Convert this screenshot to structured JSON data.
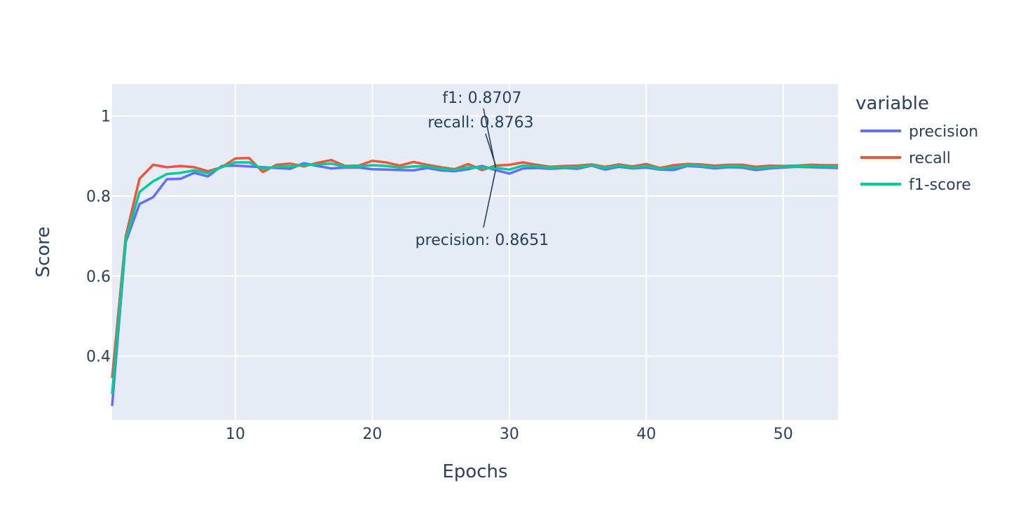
{
  "colors": {
    "plot_bg": "#e5ecf6",
    "grid": "#ffffff",
    "text": "#2a3f5f",
    "precision": "#636efa",
    "recall": "#ef553b",
    "f1-score": "#00cc96"
  },
  "chart_data": {
    "type": "line",
    "title": "",
    "xlabel": "Epochs",
    "ylabel": "Score",
    "xlim": [
      1,
      54
    ],
    "ylim": [
      0.24,
      1.08
    ],
    "xticks": [
      10,
      20,
      30,
      40,
      50
    ],
    "yticks": [
      0.4,
      0.6,
      0.8,
      1
    ],
    "ytick_labels": [
      "0.4",
      "0.6",
      "0.8",
      "1"
    ],
    "grid": true,
    "legend": {
      "title": "variable",
      "position": "right"
    },
    "x": [
      1,
      2,
      3,
      4,
      5,
      6,
      7,
      8,
      9,
      10,
      11,
      12,
      13,
      14,
      15,
      16,
      17,
      18,
      19,
      20,
      21,
      22,
      23,
      24,
      25,
      26,
      27,
      28,
      29,
      30,
      31,
      32,
      33,
      34,
      35,
      36,
      37,
      38,
      39,
      40,
      41,
      42,
      43,
      44,
      45,
      46,
      47,
      48,
      49,
      50,
      51,
      52,
      53,
      54
    ],
    "series": [
      {
        "name": "precision",
        "color": "#636efa",
        "values": [
          0.275,
          0.685,
          0.78,
          0.797,
          0.842,
          0.843,
          0.858,
          0.849,
          0.875,
          0.876,
          0.874,
          0.872,
          0.87,
          0.868,
          0.882,
          0.875,
          0.869,
          0.871,
          0.871,
          0.867,
          0.866,
          0.865,
          0.864,
          0.87,
          0.864,
          0.862,
          0.867,
          0.875,
          0.865,
          0.856,
          0.869,
          0.87,
          0.868,
          0.87,
          0.868,
          0.876,
          0.866,
          0.873,
          0.869,
          0.871,
          0.866,
          0.865,
          0.875,
          0.873,
          0.869,
          0.872,
          0.871,
          0.865,
          0.869,
          0.871,
          0.873,
          0.872,
          0.871,
          0.87
        ]
      },
      {
        "name": "recall",
        "color": "#ef553b",
        "values": [
          0.345,
          0.7,
          0.843,
          0.878,
          0.872,
          0.875,
          0.872,
          0.862,
          0.872,
          0.894,
          0.895,
          0.86,
          0.878,
          0.881,
          0.874,
          0.883,
          0.89,
          0.875,
          0.876,
          0.888,
          0.884,
          0.876,
          0.885,
          0.878,
          0.872,
          0.867,
          0.88,
          0.865,
          0.876,
          0.878,
          0.884,
          0.878,
          0.873,
          0.875,
          0.876,
          0.879,
          0.873,
          0.879,
          0.874,
          0.88,
          0.87,
          0.877,
          0.88,
          0.879,
          0.876,
          0.878,
          0.878,
          0.873,
          0.876,
          0.875,
          0.876,
          0.878,
          0.877,
          0.877
        ]
      },
      {
        "name": "f1-score",
        "color": "#00cc96",
        "values": [
          0.305,
          0.69,
          0.81,
          0.837,
          0.855,
          0.858,
          0.864,
          0.857,
          0.872,
          0.884,
          0.884,
          0.868,
          0.873,
          0.874,
          0.877,
          0.879,
          0.881,
          0.873,
          0.874,
          0.877,
          0.875,
          0.871,
          0.874,
          0.874,
          0.868,
          0.865,
          0.872,
          0.87,
          0.8707,
          0.866,
          0.876,
          0.874,
          0.871,
          0.872,
          0.872,
          0.877,
          0.87,
          0.876,
          0.871,
          0.875,
          0.868,
          0.871,
          0.877,
          0.876,
          0.872,
          0.875,
          0.874,
          0.869,
          0.872,
          0.873,
          0.874,
          0.875,
          0.874,
          0.873
        ]
      }
    ],
    "annotations": [
      {
        "text": "f1: 0.8707",
        "x": 29,
        "y": 0.8707
      },
      {
        "text": "recall: 0.8763",
        "x": 29,
        "y": 0.8763
      },
      {
        "text": "precision: 0.8651",
        "x": 29,
        "y": 0.8651
      }
    ]
  }
}
